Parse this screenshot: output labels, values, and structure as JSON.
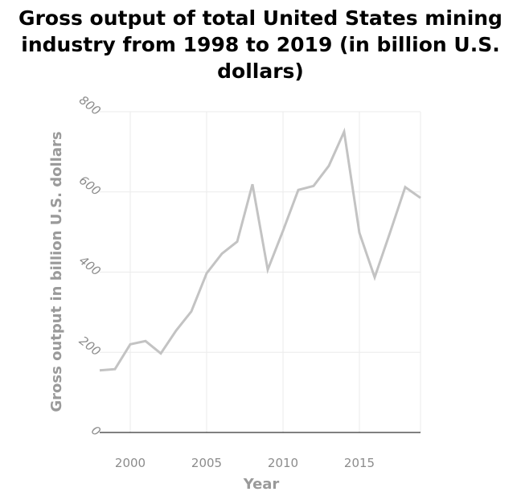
{
  "chart_data": {
    "type": "line",
    "title": "Gross output of total United States mining\nindustry from 1998 to 2019 (in billion U.S.\ndollars)",
    "xlabel": "Year",
    "ylabel": "Gross output in billion U.S. dollars",
    "xlim": [
      1998,
      2019
    ],
    "ylim": [
      0,
      800
    ],
    "xticks": [
      2000,
      2005,
      2010,
      2015
    ],
    "yticks": [
      0,
      200,
      400,
      600,
      800
    ],
    "grid": true,
    "line_color": "#c3c3c3",
    "grid_color": "#ebebeb",
    "series": [
      {
        "x": [
          1998,
          1999,
          2000,
          2001,
          2002,
          2003,
          2004,
          2005,
          2006,
          2007,
          2008,
          2009,
          2010,
          2011,
          2012,
          2013,
          2014,
          2015,
          2016,
          2017,
          2018,
          2019
        ],
        "values": [
          155,
          158,
          220,
          228,
          197,
          254,
          302,
          397,
          446,
          476,
          619,
          406,
          503,
          605,
          615,
          665,
          750,
          498,
          387,
          498,
          612,
          585
        ]
      }
    ]
  }
}
